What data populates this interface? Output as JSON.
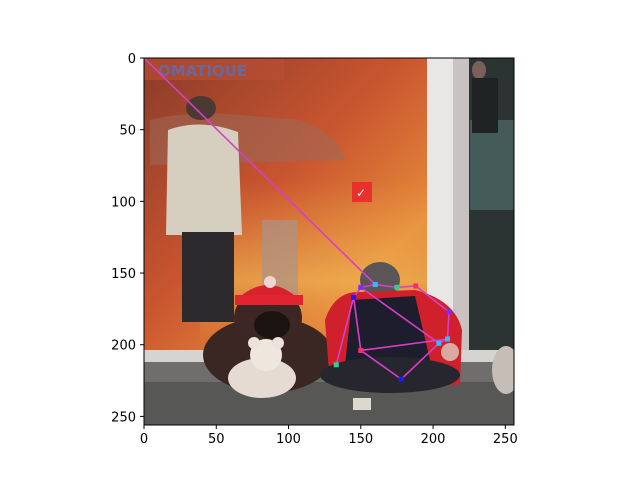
{
  "figure": {
    "xlim": [
      0,
      256
    ],
    "ylim": [
      256,
      0
    ],
    "x_ticks": [
      0,
      50,
      100,
      150,
      200,
      250
    ],
    "y_ticks": [
      0,
      50,
      100,
      150,
      200,
      250
    ],
    "x_tick_labels": [
      "0",
      "50",
      "100",
      "150",
      "200",
      "250"
    ],
    "y_tick_labels": [
      "0",
      "50",
      "100",
      "150",
      "200",
      "250"
    ]
  },
  "photo": {
    "description_tokens": [
      "shop-window",
      "woman-reflection",
      "teddy-bears",
      "seated-man-red-jacket",
      "sidewalk"
    ],
    "sign_text": "OMATIQUE"
  },
  "pose": {
    "line_color": "#d63fc8",
    "keypoint_colors": [
      "#1b1bff",
      "#2bc0ff",
      "#7b2bff",
      "#2bd38f",
      "#ff2b6b"
    ],
    "keypoints": [
      {
        "x": 0,
        "y": 0
      },
      {
        "x": 160,
        "y": 158
      },
      {
        "x": 150,
        "y": 160
      },
      {
        "x": 175,
        "y": 160
      },
      {
        "x": 188,
        "y": 159
      },
      {
        "x": 145,
        "y": 167
      },
      {
        "x": 210,
        "y": 196
      },
      {
        "x": 211,
        "y": 177
      },
      {
        "x": 133,
        "y": 214
      },
      {
        "x": 150,
        "y": 204
      },
      {
        "x": 178,
        "y": 224
      },
      {
        "x": 204,
        "y": 199
      }
    ],
    "edges": [
      [
        0,
        1
      ],
      [
        1,
        2
      ],
      [
        1,
        3
      ],
      [
        3,
        4
      ],
      [
        2,
        5
      ],
      [
        5,
        8
      ],
      [
        4,
        7
      ],
      [
        7,
        6
      ],
      [
        5,
        9
      ],
      [
        9,
        6
      ],
      [
        9,
        10
      ],
      [
        10,
        11
      ],
      [
        6,
        11
      ],
      [
        2,
        11
      ]
    ]
  }
}
